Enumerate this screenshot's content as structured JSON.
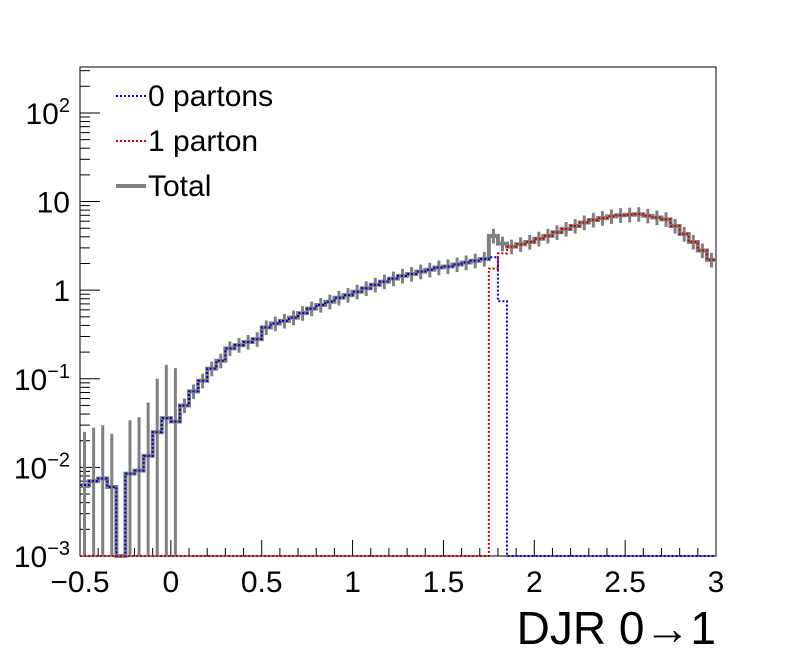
{
  "chart_data": {
    "type": "line",
    "xlabel": "DJR 0→1",
    "ylabel": "",
    "xlim": [
      -0.5,
      3.0
    ],
    "ylim": [
      0.001,
      330
    ],
    "y_scale": "log",
    "grid": false,
    "legend_position": "top-left",
    "bins": {
      "start": -0.5,
      "width": 0.05,
      "count": 70
    },
    "x_ticks": [
      {
        "value": -0.5,
        "label": "−0.5"
      },
      {
        "value": 0,
        "label": "0"
      },
      {
        "value": 0.5,
        "label": "0.5"
      },
      {
        "value": 1,
        "label": "1"
      },
      {
        "value": 1.5,
        "label": "1.5"
      },
      {
        "value": 2,
        "label": "2"
      },
      {
        "value": 2.5,
        "label": "2.5"
      },
      {
        "value": 3,
        "label": "3"
      }
    ],
    "y_ticks": [
      {
        "value": 0.001,
        "base": "10",
        "exp": "−3"
      },
      {
        "value": 0.01,
        "base": "10",
        "exp": "−2"
      },
      {
        "value": 0.1,
        "base": "10",
        "exp": "−1"
      },
      {
        "value": 1,
        "base": "1",
        "exp": ""
      },
      {
        "value": 10,
        "base": "10",
        "exp": ""
      },
      {
        "value": 100,
        "base": "10",
        "exp": "2"
      }
    ],
    "series": [
      {
        "name": "0 partons",
        "color": "#0000cc",
        "style": "dotted",
        "values": [
          0.0063,
          0.007,
          0.0075,
          0.006,
          0,
          0.0085,
          0.0092,
          0.0135,
          0.025,
          0.036,
          0.033,
          0.05,
          0.072,
          0.095,
          0.13,
          0.16,
          0.22,
          0.24,
          0.26,
          0.28,
          0.38,
          0.42,
          0.45,
          0.49,
          0.55,
          0.62,
          0.68,
          0.74,
          0.82,
          0.88,
          0.96,
          1.05,
          1.15,
          1.25,
          1.35,
          1.45,
          1.52,
          1.62,
          1.7,
          1.8,
          1.85,
          1.95,
          2.05,
          2.15,
          2.25,
          2.35,
          0.75,
          0,
          0,
          0,
          0,
          0,
          0,
          0,
          0,
          0,
          0,
          0,
          0,
          0,
          0,
          0,
          0,
          0,
          0,
          0,
          0,
          0,
          0,
          0
        ]
      },
      {
        "name": "1 parton",
        "color": "#cc0000",
        "style": "dotted",
        "values": [
          0,
          0,
          0,
          0,
          0,
          0,
          0,
          0,
          0,
          0,
          0,
          0,
          0,
          0,
          0,
          0,
          0,
          0,
          0,
          0,
          0,
          0,
          0,
          0,
          0,
          0,
          0,
          0,
          0,
          0,
          0,
          0,
          0,
          0,
          0,
          0,
          0,
          0,
          0,
          0,
          0,
          0,
          0,
          0,
          0,
          1.75,
          2.6,
          3.1,
          3.3,
          3.5,
          3.8,
          4.1,
          4.5,
          4.9,
          5.3,
          5.8,
          6.2,
          6.5,
          6.8,
          7.0,
          7.1,
          7.2,
          6.9,
          6.6,
          6.3,
          5.3,
          4.3,
          3.5,
          2.8,
          2.2
        ]
      },
      {
        "name": "Total",
        "color": "#808080",
        "style": "solid",
        "values": [
          0.0063,
          0.007,
          0.0075,
          0.006,
          0,
          0.0085,
          0.0092,
          0.0135,
          0.025,
          0.036,
          0.033,
          0.05,
          0.072,
          0.095,
          0.13,
          0.16,
          0.22,
          0.24,
          0.26,
          0.28,
          0.38,
          0.42,
          0.45,
          0.49,
          0.55,
          0.62,
          0.68,
          0.74,
          0.82,
          0.88,
          0.96,
          1.05,
          1.15,
          1.25,
          1.35,
          1.45,
          1.52,
          1.62,
          1.7,
          1.8,
          1.85,
          1.95,
          2.05,
          2.15,
          2.25,
          4.1,
          3.35,
          3.1,
          3.3,
          3.5,
          3.8,
          4.1,
          4.5,
          4.9,
          5.3,
          5.8,
          6.2,
          6.5,
          6.8,
          7.0,
          7.1,
          7.2,
          6.9,
          6.6,
          6.3,
          5.3,
          4.3,
          3.5,
          2.8,
          2.2
        ]
      }
    ]
  }
}
